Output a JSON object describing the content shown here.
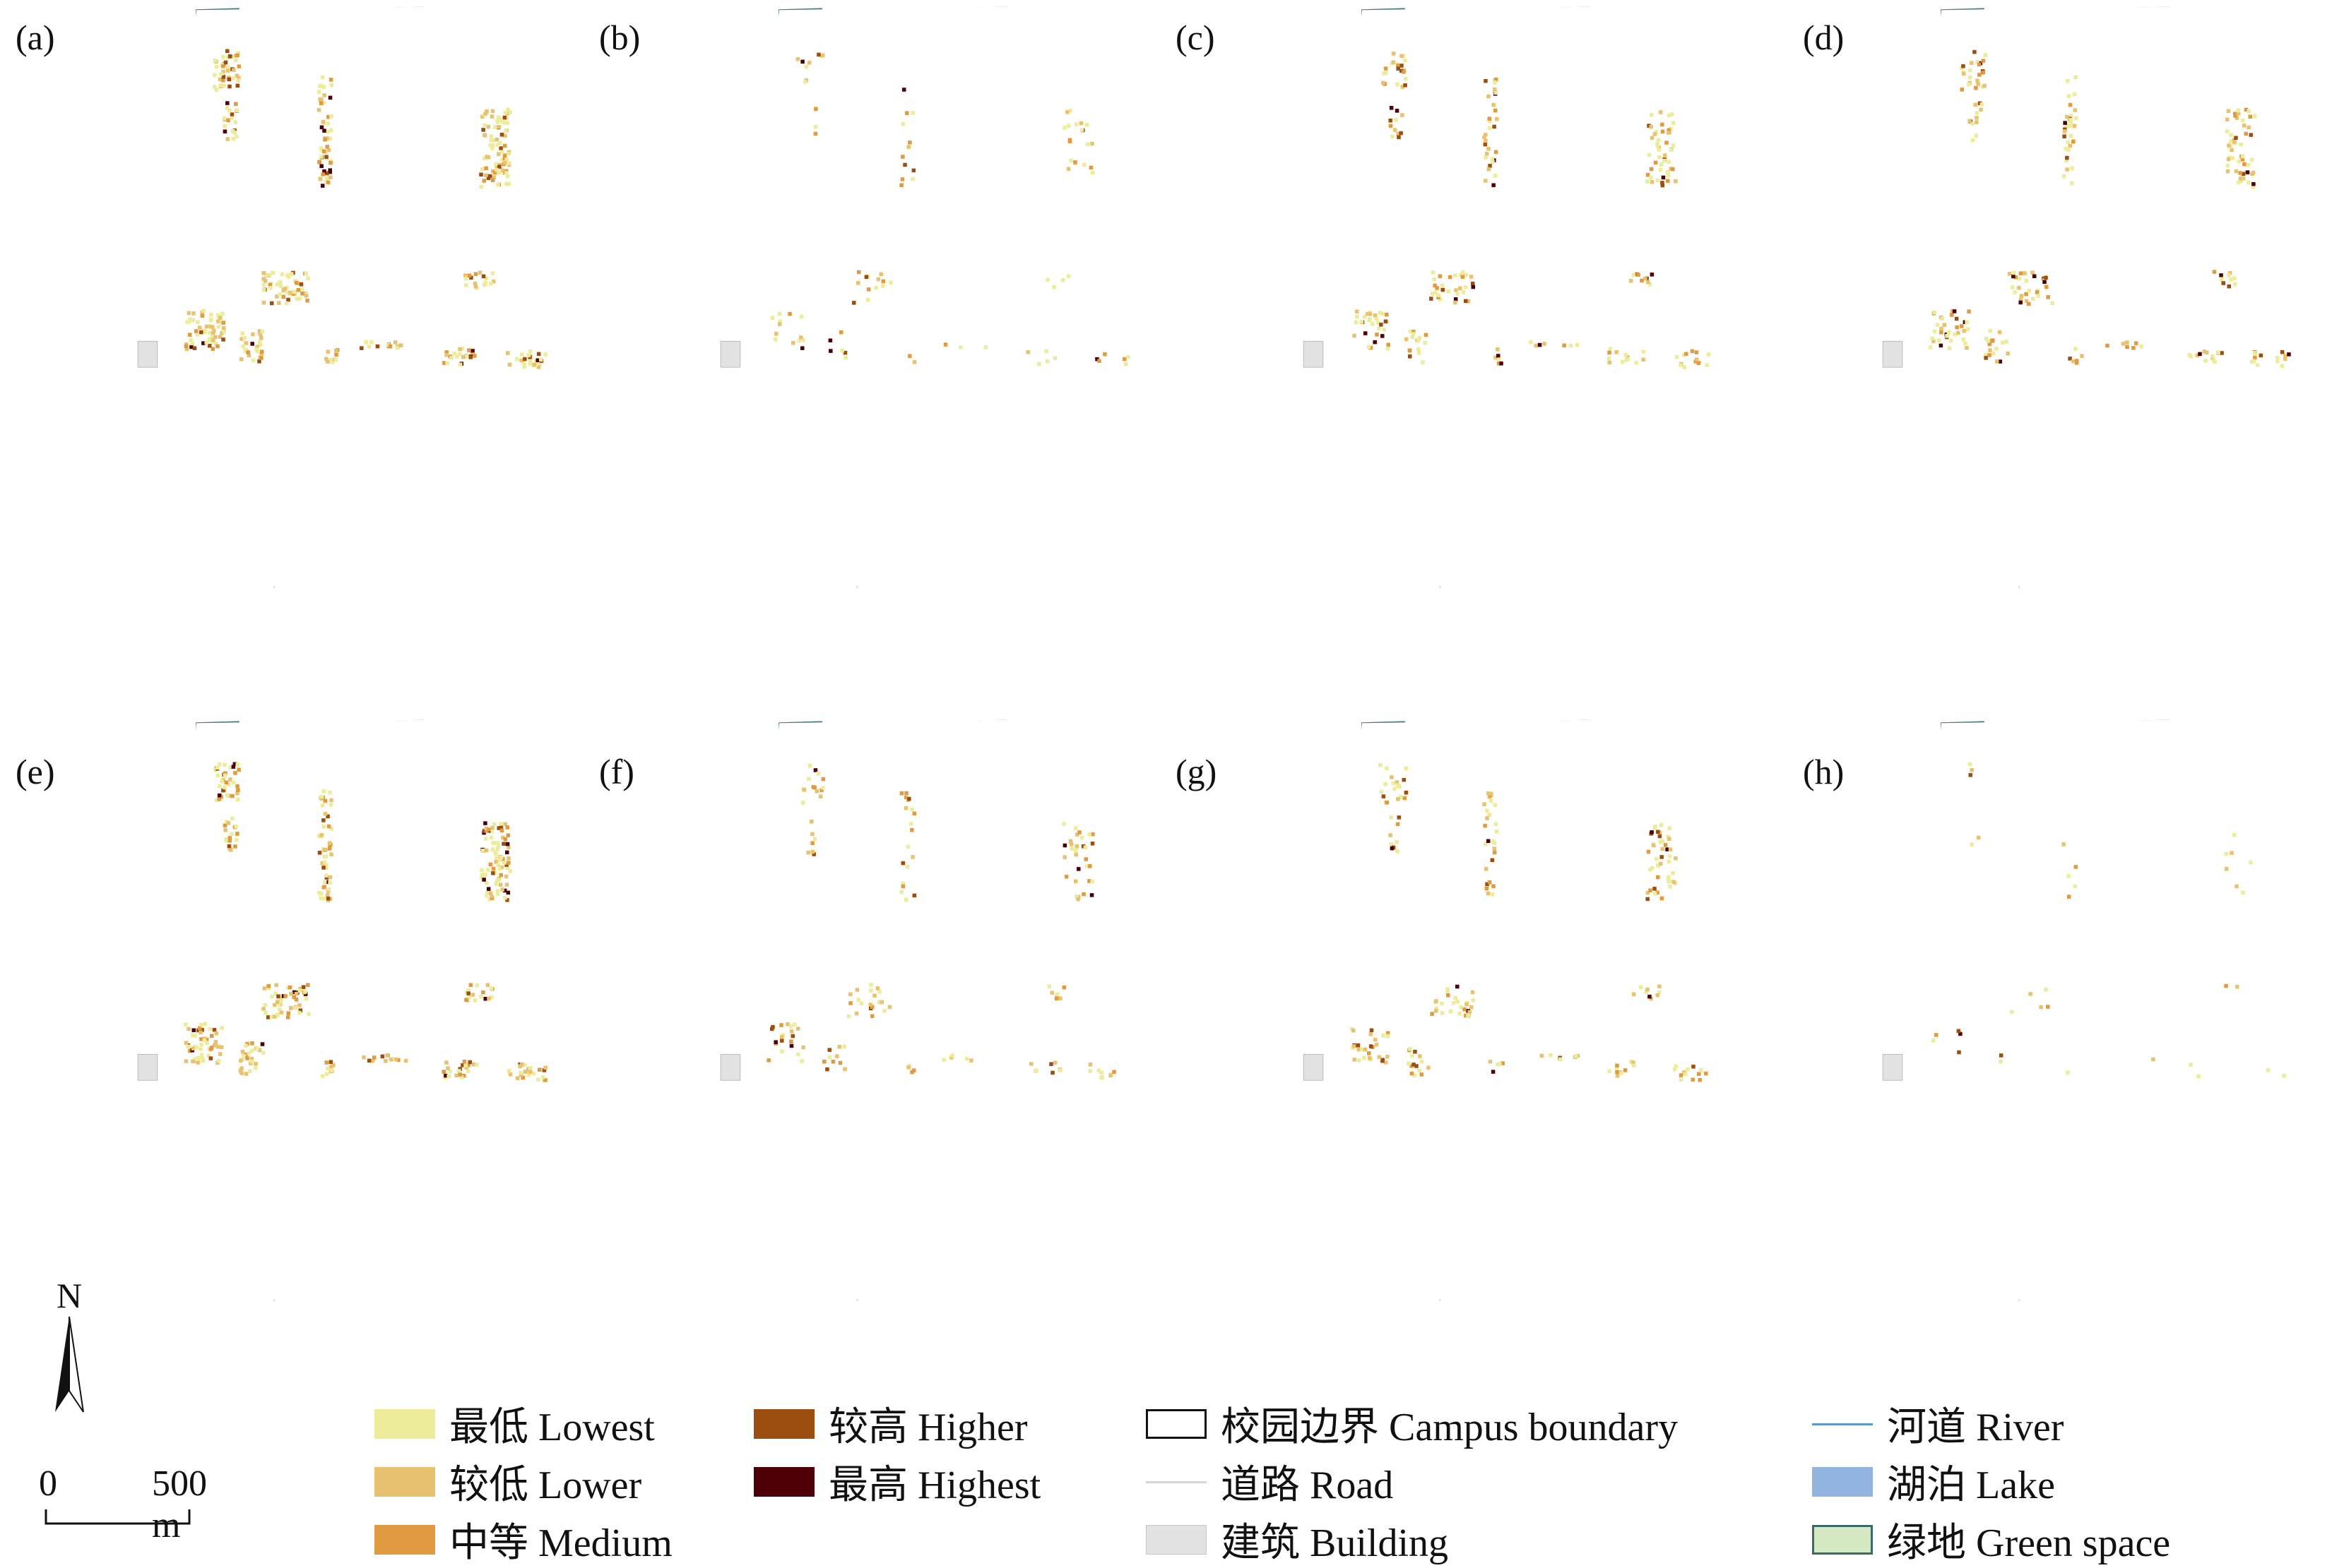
{
  "panels": [
    {
      "label": "(a)",
      "density": 1.0
    },
    {
      "label": "(b)",
      "density": 0.22
    },
    {
      "label": "(c)",
      "density": 0.55
    },
    {
      "label": "(d)",
      "density": 0.6
    },
    {
      "label": "(e)",
      "density": 0.95
    },
    {
      "label": "(f)",
      "density": 0.35
    },
    {
      "label": "(g)",
      "density": 0.5
    },
    {
      "label": "(h)",
      "density": 0.08
    }
  ],
  "legend": {
    "lowest": {
      "label": "最低 Lowest",
      "color": "#ecec9a"
    },
    "lower": {
      "label": "较低 Lower",
      "color": "#e8c270"
    },
    "medium": {
      "label": "中等 Medium",
      "color": "#e09a40"
    },
    "higher": {
      "label": "较高 Higher",
      "color": "#9c4e10"
    },
    "highest": {
      "label": "最高 Highest",
      "color": "#4e0008"
    },
    "campus_boundary": {
      "label": "校园边界 Campus boundary",
      "color": "#111111"
    },
    "road": {
      "label": "道路 Road",
      "color": "#d6d6d6"
    },
    "building": {
      "label": "建筑 Building",
      "color": "#e2e2e2"
    },
    "river": {
      "label": "河道 River",
      "color": "#5b97d1"
    },
    "lake": {
      "label": "湖泊 Lake",
      "color": "#93b4de"
    },
    "green_space": {
      "label": "绿地 Green space",
      "color": "#d4e8c2"
    }
  },
  "north_arrow": {
    "label": "N"
  },
  "scale_bar": {
    "start": "0",
    "end": "500 m"
  }
}
